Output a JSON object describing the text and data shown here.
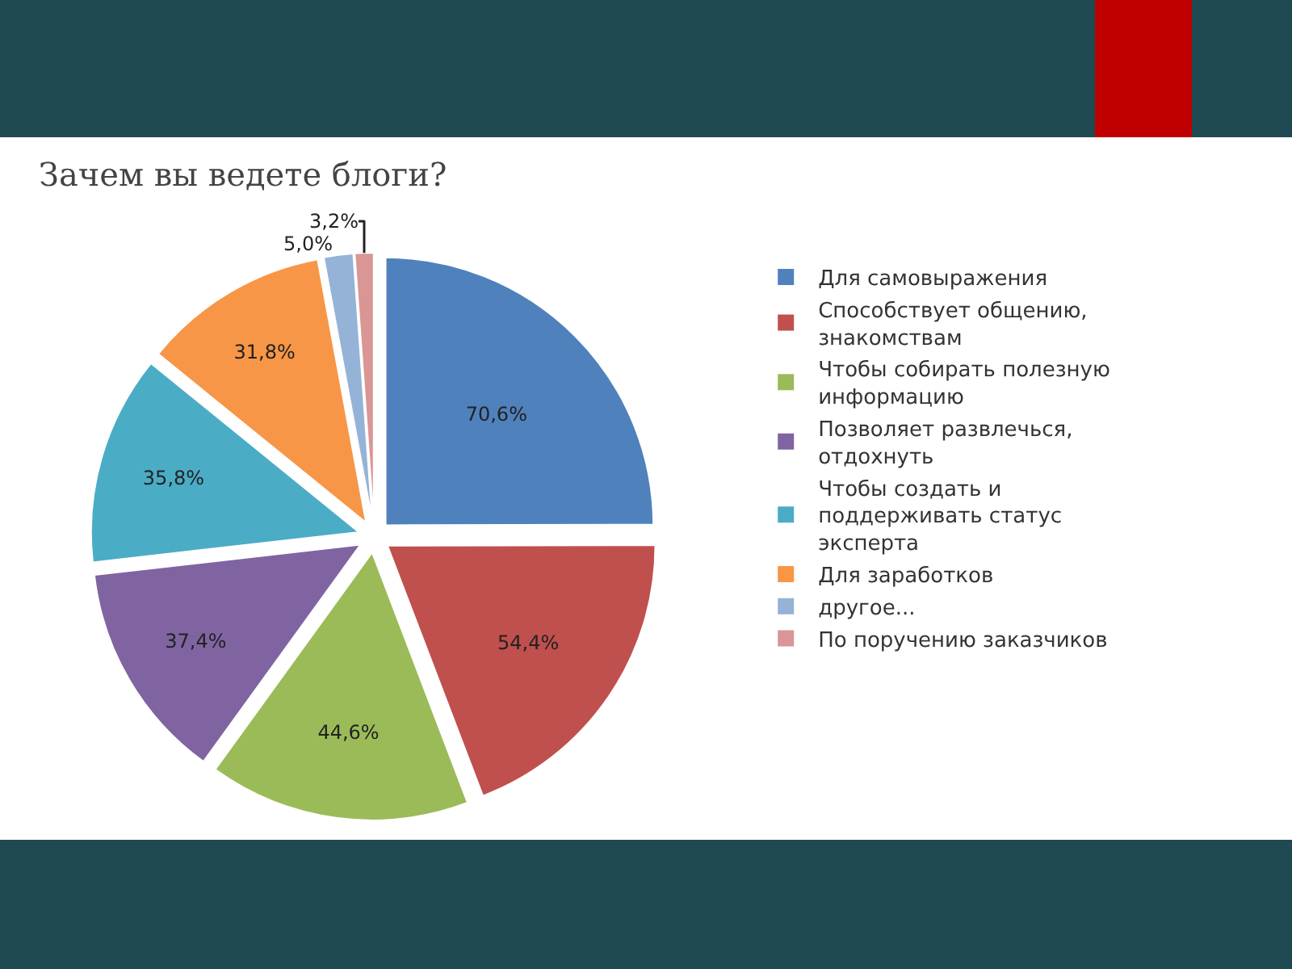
{
  "chart_data": {
    "type": "pie",
    "title": "Зачем вы ведете блоги?",
    "categories": [
      "Для самовыражения",
      "Способствует общению, знакомствам",
      "Чтобы собирать полезную информацию",
      "Позволяет развлечься, отдохнуть",
      "Чтобы создать и поддерживать статус эксперта",
      "Для заработков",
      "другое...",
      "По поручению заказчиков"
    ],
    "values": [
      70.6,
      54.4,
      44.6,
      37.4,
      35.8,
      31.8,
      5.0,
      3.2
    ],
    "value_labels": [
      "70,6%",
      "54,4%",
      "44,6%",
      "37,4%",
      "35,8%",
      "31,8%",
      "5,0%",
      "3,2%"
    ],
    "colors": [
      "#4f81bd",
      "#c0504d",
      "#9bbb59",
      "#8064a2",
      "#4bacc6",
      "#f79646",
      "#95b3d7",
      "#d99694"
    ],
    "legend": "right"
  }
}
